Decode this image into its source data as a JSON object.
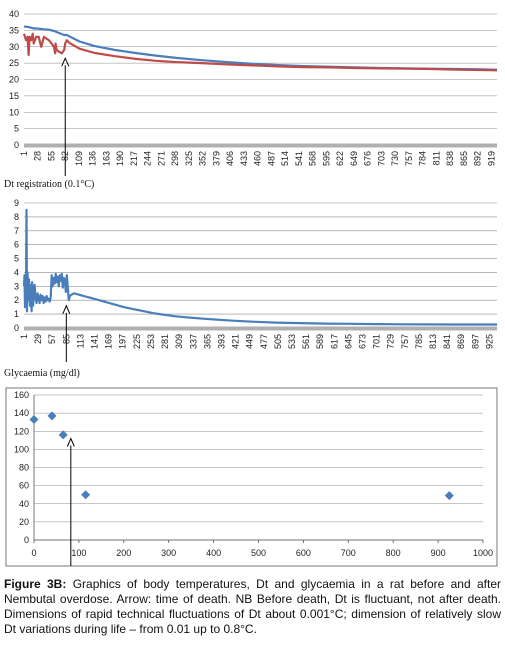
{
  "chart_data": [
    {
      "type": "line",
      "title": "",
      "xlabel": "",
      "ylabel": "",
      "ylim": [
        0,
        40
      ],
      "yticks": [
        0,
        5,
        10,
        15,
        20,
        25,
        30,
        35,
        40
      ],
      "xlim": [
        1,
        930
      ],
      "xticks": [
        1,
        28,
        55,
        82,
        109,
        136,
        163,
        190,
        217,
        244,
        271,
        298,
        325,
        352,
        379,
        406,
        433,
        460,
        487,
        514,
        541,
        568,
        595,
        622,
        649,
        676,
        703,
        730,
        757,
        784,
        811,
        838,
        865,
        892,
        919
      ],
      "grid": true,
      "arrow_x": 82,
      "series": [
        {
          "color": "#4a7ebb",
          "x": [
            1,
            10,
            20,
            30,
            40,
            50,
            60,
            70,
            80,
            85,
            90,
            110,
            140,
            180,
            220,
            260,
            300,
            350,
            400,
            450,
            500,
            550,
            600,
            650,
            700,
            750,
            800,
            850,
            900,
            930
          ],
          "y": [
            36.2,
            36.0,
            35.6,
            35.5,
            35.3,
            35.2,
            34.8,
            34.2,
            33.6,
            33.6,
            33.2,
            31.6,
            30.2,
            29.0,
            28.1,
            27.3,
            26.6,
            25.9,
            25.3,
            24.8,
            24.4,
            24.1,
            23.9,
            23.7,
            23.5,
            23.4,
            23.3,
            23.2,
            23.1,
            23.0
          ]
        },
        {
          "color": "#be4b48",
          "x": [
            1,
            5,
            8,
            10,
            12,
            15,
            18,
            20,
            25,
            30,
            33,
            35,
            40,
            45,
            50,
            55,
            60,
            62,
            63,
            65,
            70,
            75,
            80,
            82,
            85,
            90,
            110,
            140,
            180,
            220,
            260,
            300,
            350,
            400,
            450,
            500,
            550,
            600,
            650,
            700,
            750,
            800,
            850,
            900,
            930
          ],
          "y": [
            34,
            32,
            33,
            27.5,
            33,
            32,
            34,
            31,
            33,
            33,
            31,
            30,
            33,
            32.5,
            32,
            31,
            30,
            28,
            31,
            29,
            28.5,
            28,
            29,
            31,
            32,
            31.2,
            29.4,
            28.1,
            27.1,
            26.3,
            25.7,
            25.3,
            25.0,
            24.6,
            24.3,
            24.0,
            23.8,
            23.7,
            23.5,
            23.4,
            23.3,
            23.2,
            23.0,
            22.9,
            22.8
          ]
        }
      ]
    },
    {
      "type": "line",
      "title": "Dt registration (0.1°C)",
      "xlabel": "",
      "ylabel": "",
      "ylim": [
        0,
        9
      ],
      "yticks": [
        0,
        1,
        2,
        3,
        4,
        5,
        6,
        7,
        8,
        9
      ],
      "xlim": [
        1,
        940
      ],
      "xticks": [
        1,
        29,
        57,
        85,
        113,
        141,
        169,
        197,
        225,
        253,
        281,
        309,
        337,
        365,
        393,
        421,
        449,
        477,
        505,
        533,
        561,
        589,
        617,
        645,
        673,
        701,
        729,
        757,
        785,
        813,
        841,
        869,
        897,
        925
      ],
      "grid": true,
      "arrow_x": 85,
      "series": [
        {
          "color": "#4a7ebb",
          "x": [
            1,
            2,
            3,
            4,
            5,
            6,
            7,
            8,
            9,
            10,
            11,
            12,
            13,
            14,
            15,
            16,
            17,
            18,
            19,
            20,
            22,
            24,
            26,
            28,
            30,
            32,
            34,
            36,
            38,
            40,
            42,
            44,
            46,
            48,
            50,
            52,
            54,
            56,
            58,
            60,
            62,
            64,
            66,
            68,
            70,
            72,
            74,
            76,
            78,
            80,
            82,
            84,
            86,
            88,
            90,
            92,
            95,
            100,
            105,
            110,
            120,
            130,
            140,
            150,
            160,
            170,
            180,
            200,
            220,
            240,
            260,
            280,
            300,
            320,
            340,
            360,
            380,
            400,
            420,
            440,
            460,
            480,
            500,
            550,
            600,
            650,
            700,
            750,
            800,
            850,
            900,
            940
          ],
          "y": [
            3.0,
            3.8,
            1.5,
            3.5,
            2.2,
            8.5,
            1.2,
            4.0,
            3.2,
            2.0,
            3.5,
            2.4,
            1.6,
            3.1,
            2.2,
            1.2,
            3.3,
            2.6,
            1.6,
            2.2,
            3.1,
            2.1,
            1.8,
            2.5,
            2.2,
            1.8,
            2.4,
            2.0,
            2.3,
            1.8,
            2.2,
            1.9,
            2.3,
            2.0,
            2.1,
            1.9,
            2.2,
            3.8,
            3.0,
            3.6,
            3.2,
            3.9,
            3.3,
            3.7,
            3.0,
            3.8,
            3.4,
            3.9,
            2.9,
            3.6,
            3.5,
            2.6,
            3.8,
            2.9,
            2.0,
            2.3,
            2.4,
            2.5,
            2.45,
            2.4,
            2.3,
            2.2,
            2.1,
            2.0,
            1.9,
            1.8,
            1.7,
            1.5,
            1.35,
            1.2,
            1.05,
            0.95,
            0.85,
            0.78,
            0.72,
            0.66,
            0.61,
            0.56,
            0.52,
            0.48,
            0.45,
            0.42,
            0.39,
            0.35,
            0.32,
            0.3,
            0.28,
            0.27,
            0.26,
            0.25,
            0.25,
            0.25
          ]
        }
      ]
    },
    {
      "type": "scatter",
      "title": "Glycaemia (mg/dl)",
      "xlabel": "",
      "ylabel": "",
      "xlim": [
        0,
        1000
      ],
      "ylim": [
        0,
        160
      ],
      "xticks": [
        0,
        100,
        200,
        300,
        400,
        500,
        600,
        700,
        800,
        900,
        1000
      ],
      "yticks": [
        0,
        20,
        40,
        60,
        80,
        100,
        120,
        140,
        160
      ],
      "grid": true,
      "arrow_x": 82,
      "series": [
        {
          "color": "#4a7ebb",
          "x": [
            0,
            40,
            65,
            115,
            925
          ],
          "y": [
            133,
            137,
            116,
            50,
            49
          ]
        }
      ]
    }
  ],
  "caption": {
    "label": "Figure 3B:",
    "text": " Graphics of body temperatures, Dt and glycaemia in a rat before and after Nembutal overdose. Arrow: time of death. NB Before death, Dt is fluctuant, not after death. Dimensions of rapid technical fluctuations of Dt about 0.001°C; dimension of relatively slow Dt variations during life – from 0.01 up to 0.8°C."
  }
}
